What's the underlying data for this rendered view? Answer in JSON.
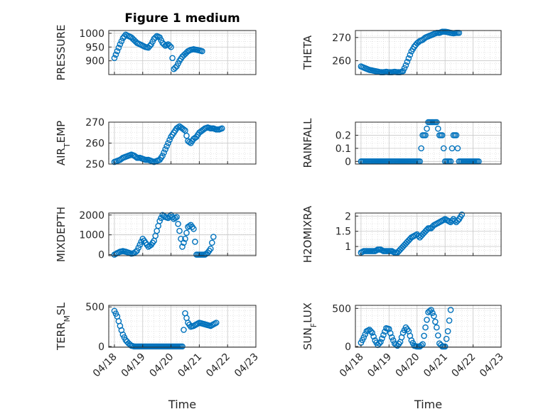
{
  "chart_data": [
    {
      "type": "scatter",
      "id": "pressure",
      "title": "Figure 1 medium",
      "ylabel": "PRESSURE",
      "ylim": [
        850,
        1010
      ],
      "yticks": [
        900,
        950,
        1000
      ],
      "yticklabels": [
        "900",
        "950",
        "1000"
      ],
      "x": [
        0.0,
        0.1,
        0.2,
        0.3,
        0.4,
        0.5,
        0.6,
        0.7,
        0.8,
        0.9,
        1.0,
        1.1,
        1.2,
        1.3,
        1.4,
        1.5,
        1.6,
        1.7,
        1.8,
        1.9,
        2.0,
        2.1,
        2.2,
        2.3,
        2.4,
        2.5,
        2.6,
        2.7,
        2.8,
        2.9,
        3.0,
        3.1,
        3.2,
        3.3,
        3.4,
        3.5,
        3.6,
        3.7,
        3.8,
        3.9,
        4.0,
        4.1,
        4.2
      ],
      "values": [
        910,
        935,
        960,
        982,
        995,
        990,
        985,
        975,
        965,
        960,
        955,
        950,
        948,
        960,
        980,
        990,
        985,
        965,
        955,
        960,
        950,
        870,
        880,
        900,
        915,
        925,
        935,
        940,
        942,
        940,
        938,
        935,
        null,
        null,
        null,
        null,
        null,
        null,
        null,
        null,
        null,
        null,
        null
      ]
    },
    {
      "type": "scatter",
      "id": "theta",
      "ylabel": "THETA",
      "ylim": [
        254,
        273
      ],
      "yticks": [
        260,
        270
      ],
      "yticklabels": [
        "260",
        "270"
      ],
      "x": [
        0.0,
        0.1,
        0.2,
        0.3,
        0.4,
        0.5,
        0.6,
        0.7,
        0.8,
        0.9,
        1.0,
        1.1,
        1.2,
        1.3,
        1.4,
        1.5,
        1.6,
        1.7,
        1.8,
        1.9,
        2.0,
        2.1,
        2.2,
        2.3,
        2.4,
        2.5,
        2.6,
        2.7,
        2.8,
        2.9,
        3.0,
        3.1,
        3.2,
        3.3,
        3.4,
        3.5,
        3.6,
        3.7,
        3.8,
        3.9,
        4.0,
        4.1,
        4.2
      ],
      "values": [
        257.5,
        257,
        256.5,
        256,
        255.8,
        255.5,
        255.3,
        255,
        255,
        255.2,
        255,
        255,
        255.2,
        255,
        255,
        255.5,
        258,
        261,
        264,
        266,
        267.5,
        268.5,
        269,
        270,
        270.5,
        271,
        271.5,
        272,
        272,
        272.5,
        272.5,
        272.3,
        272,
        271.8,
        272,
        272,
        null,
        null,
        null,
        null,
        null,
        null,
        null
      ]
    },
    {
      "type": "scatter",
      "id": "air_temp",
      "ylabel": "AIR_TEMP",
      "ylim": [
        250,
        270
      ],
      "yticks": [
        250,
        260,
        270
      ],
      "yticklabels": [
        "250",
        "260",
        "270"
      ],
      "x": [
        0.0,
        0.1,
        0.2,
        0.3,
        0.4,
        0.5,
        0.6,
        0.7,
        0.8,
        0.9,
        1.0,
        1.1,
        1.2,
        1.3,
        1.4,
        1.5,
        1.6,
        1.7,
        1.8,
        1.9,
        2.0,
        2.1,
        2.2,
        2.3,
        2.4,
        2.5,
        2.6,
        2.7,
        2.8,
        2.9,
        3.0,
        3.1,
        3.2,
        3.3,
        3.4,
        3.5,
        3.6,
        3.7,
        3.8,
        3.9,
        4.0,
        4.1,
        4.2
      ],
      "values": [
        251,
        251.5,
        252,
        253,
        253.5,
        254,
        254.5,
        254,
        253,
        253,
        252.5,
        252,
        252,
        251.5,
        251,
        251.5,
        252,
        254,
        257,
        260,
        263,
        265,
        267,
        268,
        267,
        266,
        261,
        260,
        262,
        263,
        265,
        266,
        267,
        267.5,
        267,
        267,
        266.5,
        266.5,
        267,
        null,
        null,
        null,
        null
      ]
    },
    {
      "type": "scatter",
      "id": "rainfall",
      "ylabel": "RAINFALL",
      "ylim": [
        -0.02,
        0.3
      ],
      "yticks": [
        0,
        0.1,
        0.2
      ],
      "yticklabels": [
        "0",
        "0.1",
        "0.2"
      ],
      "x": [
        0.0,
        0.1,
        0.2,
        0.3,
        0.4,
        0.5,
        0.6,
        0.7,
        0.8,
        0.9,
        1.0,
        1.1,
        1.2,
        1.3,
        1.4,
        1.5,
        1.6,
        1.7,
        1.8,
        1.9,
        2.0,
        2.1,
        2.2,
        2.3,
        2.4,
        2.5,
        2.6,
        2.7,
        2.8,
        2.9,
        3.0,
        3.1,
        3.2,
        3.3,
        3.4,
        3.5,
        3.6,
        3.7,
        3.8,
        3.9,
        4.0,
        4.1,
        4.2
      ],
      "values": [
        0,
        0,
        0,
        0,
        0,
        0,
        0,
        0,
        0,
        0,
        0,
        0,
        0,
        0,
        0,
        0,
        0,
        0,
        0,
        0,
        0,
        0,
        0.2,
        0.2,
        0.3,
        0.3,
        0.3,
        0.3,
        0.2,
        0.2,
        0,
        0,
        0,
        0.2,
        0.2,
        0,
        0,
        0,
        0,
        0,
        0,
        0,
        0
      ]
    },
    {
      "type": "scatter",
      "id": "mixdepth",
      "ylabel": "MIXDEPTH",
      "ylim": [
        -50,
        2100
      ],
      "yticks": [
        0,
        1000,
        2000
      ],
      "yticklabels": [
        "0",
        "1000",
        "2000"
      ],
      "x": [
        0.0,
        0.1,
        0.2,
        0.3,
        0.4,
        0.5,
        0.6,
        0.7,
        0.8,
        0.9,
        1.0,
        1.1,
        1.2,
        1.3,
        1.4,
        1.5,
        1.6,
        1.7,
        1.8,
        1.9,
        2.0,
        2.1,
        2.2,
        2.3,
        2.4,
        2.5,
        2.6,
        2.7,
        2.8,
        2.9,
        3.0,
        3.1,
        3.2,
        3.3,
        3.4,
        3.5,
        3.6,
        3.7,
        3.8,
        3.9,
        4.0,
        4.1,
        4.2
      ],
      "values": [
        0,
        80,
        150,
        180,
        150,
        100,
        50,
        80,
        200,
        500,
        800,
        600,
        400,
        500,
        700,
        1200,
        1700,
        2000,
        1900,
        1850,
        2000,
        1800,
        1900,
        1200,
        400,
        800,
        1400,
        1500,
        1300,
        0,
        0,
        0,
        0,
        100,
        300,
        900,
        null,
        null,
        null,
        null,
        null,
        null,
        null
      ]
    },
    {
      "type": "scatter",
      "id": "h2omixra",
      "ylabel": "H2OMIXRA",
      "ylim": [
        0.7,
        2.1
      ],
      "yticks": [
        1,
        1.5,
        2
      ],
      "yticklabels": [
        "1",
        "1.5",
        "2"
      ],
      "x": [
        0.0,
        0.1,
        0.2,
        0.3,
        0.4,
        0.5,
        0.6,
        0.7,
        0.8,
        0.9,
        1.0,
        1.1,
        1.2,
        1.3,
        1.4,
        1.5,
        1.6,
        1.7,
        1.8,
        1.9,
        2.0,
        2.1,
        2.2,
        2.3,
        2.4,
        2.5,
        2.6,
        2.7,
        2.8,
        2.9,
        3.0,
        3.1,
        3.2,
        3.3,
        3.4,
        3.5,
        3.6,
        3.7,
        3.8,
        3.9,
        4.0,
        4.1,
        4.2
      ],
      "values": [
        0.8,
        0.85,
        0.85,
        0.85,
        0.85,
        0.85,
        0.9,
        0.9,
        0.85,
        0.85,
        0.85,
        0.85,
        0.8,
        0.8,
        0.9,
        1.0,
        1.1,
        1.2,
        1.3,
        1.35,
        1.4,
        1.3,
        1.4,
        1.5,
        1.6,
        1.6,
        1.7,
        1.75,
        1.8,
        1.85,
        1.9,
        1.85,
        1.8,
        1.9,
        1.8,
        1.9,
        2.05,
        null,
        null,
        null,
        null,
        null,
        null
      ]
    },
    {
      "type": "scatter",
      "id": "terr_msl",
      "ylabel": "TERR_MSL",
      "ylim": [
        -10,
        520
      ],
      "yticks": [
        0,
        500
      ],
      "yticklabels": [
        "0",
        "500"
      ],
      "x": [
        0.0,
        0.1,
        0.2,
        0.3,
        0.4,
        0.5,
        0.6,
        0.7,
        0.8,
        0.9,
        1.0,
        1.1,
        1.2,
        1.3,
        1.4,
        1.5,
        1.6,
        1.7,
        1.8,
        1.9,
        2.0,
        2.1,
        2.2,
        2.3,
        2.4,
        2.5,
        2.6,
        2.7,
        2.8,
        2.9,
        3.0,
        3.1,
        3.2,
        3.3,
        3.4,
        3.5,
        3.6,
        3.7,
        3.8,
        3.9,
        4.0,
        4.1,
        4.2
      ],
      "values": [
        450,
        380,
        260,
        150,
        80,
        40,
        10,
        0,
        0,
        0,
        0,
        0,
        0,
        0,
        0,
        0,
        0,
        0,
        0,
        0,
        0,
        0,
        0,
        0,
        0,
        420,
        300,
        250,
        260,
        280,
        300,
        290,
        280,
        270,
        260,
        280,
        300,
        null,
        null,
        null,
        null,
        null,
        null
      ]
    },
    {
      "type": "scatter",
      "id": "sun_flux",
      "ylabel": "SUN_FLUX",
      "ylim": [
        -10,
        540
      ],
      "yticks": [
        0,
        500
      ],
      "yticklabels": [
        "0",
        "500"
      ],
      "x": [
        0.0,
        0.1,
        0.2,
        0.3,
        0.4,
        0.5,
        0.6,
        0.7,
        0.8,
        0.9,
        1.0,
        1.1,
        1.2,
        1.3,
        1.4,
        1.5,
        1.6,
        1.7,
        1.8,
        1.9,
        2.0,
        2.1,
        2.2,
        2.3,
        2.4,
        2.5,
        2.6,
        2.7,
        2.8,
        2.9,
        3.0,
        3.1,
        3.2,
        3.3,
        3.4,
        3.5,
        3.6,
        3.7,
        3.8,
        3.9,
        4.0,
        4.1,
        4.2
      ],
      "values": [
        50,
        120,
        200,
        220,
        180,
        80,
        20,
        60,
        150,
        240,
        230,
        120,
        40,
        10,
        60,
        180,
        250,
        200,
        80,
        10,
        0,
        0,
        30,
        250,
        450,
        480,
        400,
        250,
        40,
        0,
        0,
        200,
        480,
        null,
        null,
        null,
        null,
        null,
        null,
        null,
        null,
        null,
        null
      ]
    }
  ],
  "x_axis": {
    "label": "Time",
    "xlim": [
      -0.2,
      5.0
    ],
    "ticks": [
      0,
      1,
      2,
      3,
      4,
      5
    ],
    "ticklabels": [
      "04/18",
      "04/19",
      "04/20",
      "04/21",
      "04/22",
      "04/23"
    ]
  },
  "style": {
    "marker": "circle",
    "color": "#0072BD",
    "grid": true
  }
}
